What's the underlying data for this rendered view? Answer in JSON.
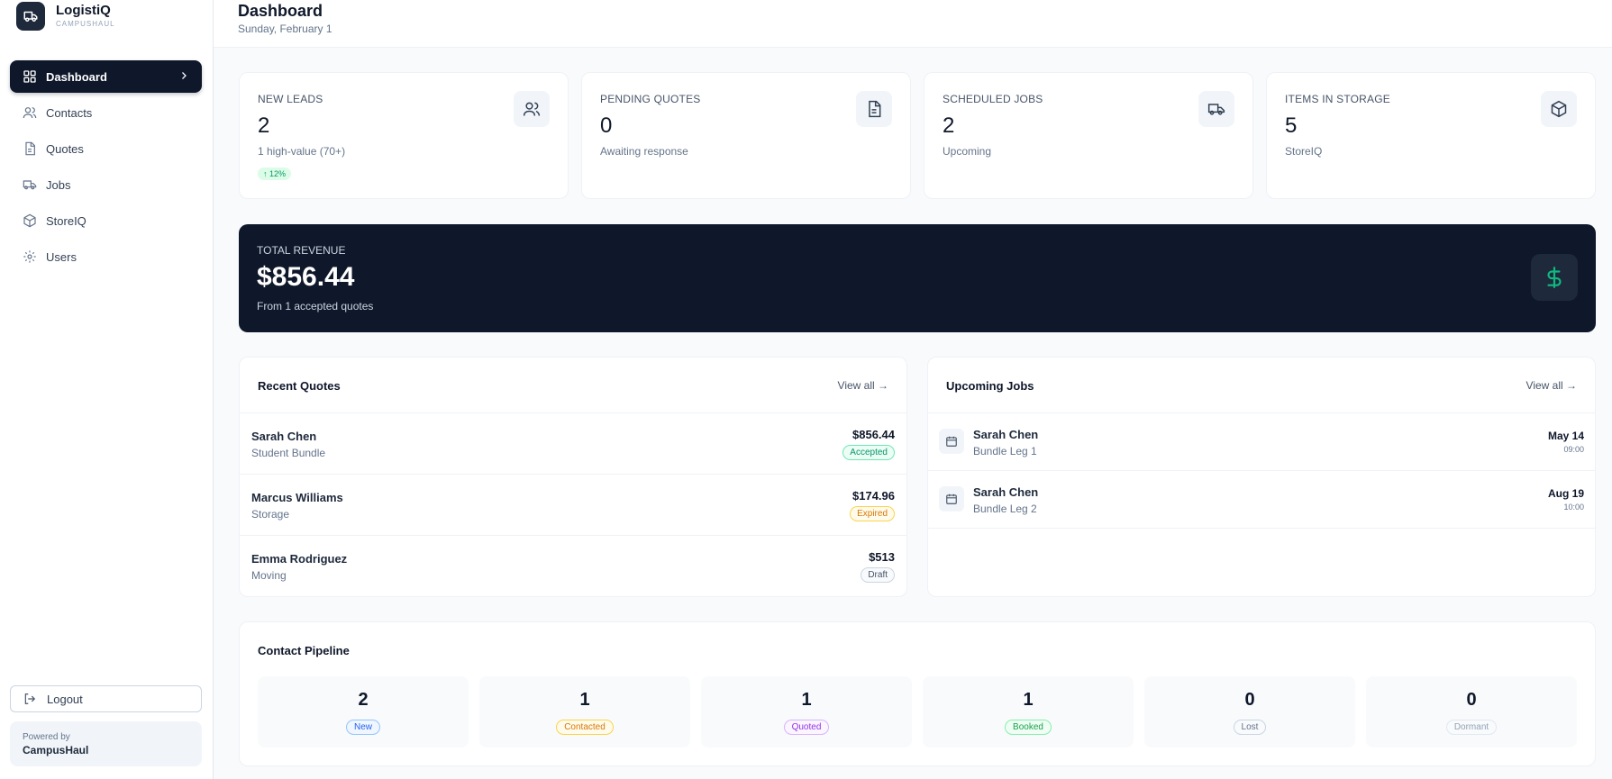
{
  "brand": {
    "name": "LogistiQ",
    "subtitle": "CAMPUSHAUL"
  },
  "nav": [
    {
      "label": "Dashboard",
      "icon": "dashboard-icon",
      "active": true
    },
    {
      "label": "Contacts",
      "icon": "users-icon"
    },
    {
      "label": "Quotes",
      "icon": "file-icon"
    },
    {
      "label": "Jobs",
      "icon": "truck-icon"
    },
    {
      "label": "StoreIQ",
      "icon": "box-icon"
    },
    {
      "label": "Users",
      "icon": "gear-icon"
    }
  ],
  "logout_label": "Logout",
  "powered": {
    "label": "Powered by",
    "name": "CampusHaul"
  },
  "header": {
    "title": "Dashboard",
    "date": "Sunday, February 1"
  },
  "stats": [
    {
      "label": "NEW LEADS",
      "value": "2",
      "sub": "1 high-value (70+)",
      "trend": "↑ 12%",
      "icon": "users-icon"
    },
    {
      "label": "PENDING QUOTES",
      "value": "0",
      "sub": "Awaiting response",
      "icon": "file-icon"
    },
    {
      "label": "SCHEDULED JOBS",
      "value": "2",
      "sub": "Upcoming",
      "icon": "truck-icon"
    },
    {
      "label": "ITEMS IN STORAGE",
      "value": "5",
      "sub": "StoreIQ",
      "icon": "box-icon"
    }
  ],
  "revenue": {
    "label": "TOTAL REVENUE",
    "value": "$856.44",
    "sub": "From 1 accepted quotes",
    "icon": "dollar-icon"
  },
  "recent_quotes": {
    "title": "Recent Quotes",
    "view_all": "View all →",
    "rows": [
      {
        "name": "Sarah Chen",
        "type": "Student Bundle",
        "amount": "$856.44",
        "status": "Accepted"
      },
      {
        "name": "Marcus Williams",
        "type": "Storage",
        "amount": "$174.96",
        "status": "Expired"
      },
      {
        "name": "Emma Rodriguez",
        "type": "Moving",
        "amount": "$513",
        "status": "Draft"
      }
    ]
  },
  "upcoming_jobs": {
    "title": "Upcoming Jobs",
    "view_all": "View all →",
    "rows": [
      {
        "name": "Sarah Chen",
        "leg": "Bundle Leg 1",
        "date": "May 14",
        "time": "09:00"
      },
      {
        "name": "Sarah Chen",
        "leg": "Bundle Leg 2",
        "date": "Aug 19",
        "time": "10:00"
      }
    ]
  },
  "pipeline": {
    "title": "Contact Pipeline",
    "stages": [
      {
        "count": "2",
        "label": "New"
      },
      {
        "count": "1",
        "label": "Contacted"
      },
      {
        "count": "1",
        "label": "Quoted"
      },
      {
        "count": "1",
        "label": "Booked"
      },
      {
        "count": "0",
        "label": "Lost"
      },
      {
        "count": "0",
        "label": "Dormant"
      }
    ]
  },
  "colors": {
    "sidebar_active": "#0f172a",
    "revenue_bg": "#0f172a",
    "accent_green": "#10b981",
    "status_accepted": "#059669",
    "status_expired": "#d97706",
    "status_draft": "#475569",
    "stage_new": "#2563eb",
    "stage_contacted": "#d97706",
    "stage_quoted": "#9333ea",
    "stage_booked": "#16a34a",
    "stage_lost": "#64748b",
    "stage_dormant": "#94a3b8"
  }
}
